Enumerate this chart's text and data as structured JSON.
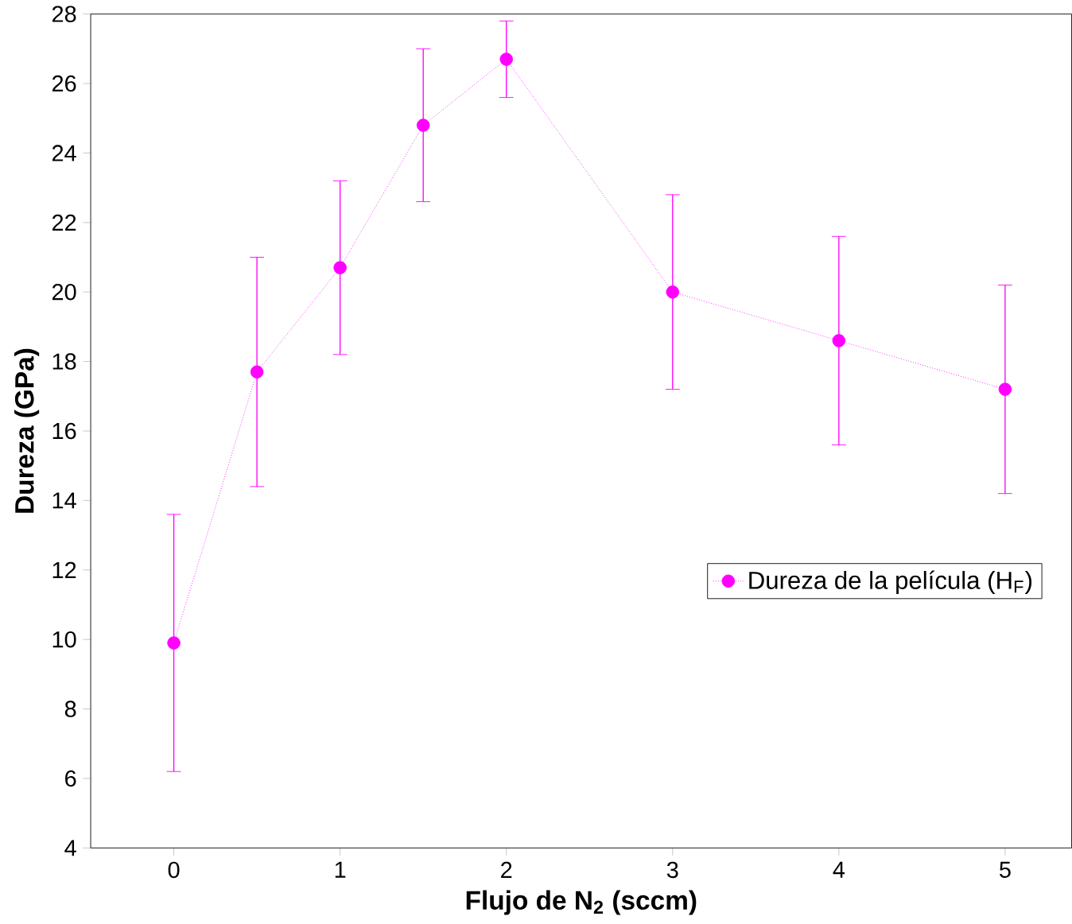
{
  "chart_data": {
    "type": "line",
    "xlabel": "Flujo de N$_{2}$ (sccm)",
    "ylabel": "Dureza (GPa)",
    "x": [
      0,
      0.5,
      1,
      1.5,
      2,
      3,
      4,
      5
    ],
    "series": [
      {
        "name": "Dureza de la película (H$_{F}$)",
        "color": "#ff00ff",
        "values": [
          9.9,
          17.7,
          20.7,
          24.8,
          26.7,
          20.0,
          18.6,
          17.2
        ],
        "errors": [
          3.7,
          3.3,
          2.5,
          2.2,
          1.1,
          2.8,
          3.0,
          3.0
        ]
      }
    ],
    "xlim": [
      -0.5,
      5.4
    ],
    "ylim": [
      4,
      28
    ],
    "xticks": [
      0,
      1,
      2,
      3,
      4,
      5
    ],
    "yticks": [
      4,
      6,
      8,
      10,
      12,
      14,
      16,
      18,
      20,
      22,
      24,
      26,
      28
    ],
    "legend": "right",
    "marker": "circle",
    "line_style": "dotted",
    "grid": false
  }
}
